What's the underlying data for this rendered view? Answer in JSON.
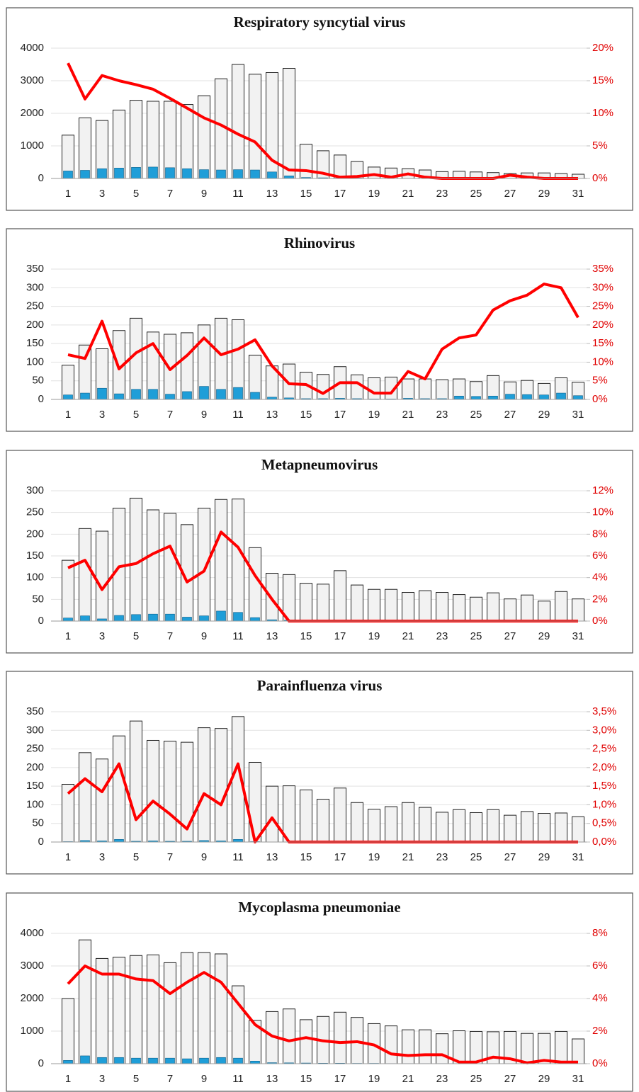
{
  "chart_data": [
    {
      "type": "bar",
      "title": "Respiratory syncytial virus",
      "categories": [
        "1",
        null,
        "3",
        null,
        "5",
        null,
        "7",
        null,
        "9",
        null,
        "11",
        null,
        "13",
        null,
        "15",
        null,
        "17",
        null,
        "19",
        null,
        "21",
        null,
        "23",
        null,
        "25",
        null,
        "27",
        null,
        "29",
        null,
        "31"
      ],
      "series": [
        {
          "color": "#f2f2f2",
          "values": [
            1330,
            1860,
            1780,
            2100,
            2400,
            2370,
            2370,
            2270,
            2540,
            3060,
            3500,
            3200,
            3250,
            3380,
            1050,
            850,
            720,
            520,
            350,
            320,
            300,
            260,
            210,
            220,
            200,
            180,
            150,
            170,
            170,
            150,
            130
          ]
        },
        {
          "color": "#1f9ed8",
          "values": [
            230,
            250,
            300,
            320,
            340,
            350,
            330,
            300,
            270,
            260,
            270,
            260,
            200,
            80,
            30,
            20,
            10,
            10,
            5,
            5,
            3,
            2,
            2,
            2,
            1,
            1,
            1,
            1,
            1,
            1,
            1
          ]
        },
        {
          "type": "line",
          "axis": "y2",
          "color": "#ff0000",
          "values": [
            17.7,
            12.2,
            15.8,
            15,
            14.4,
            13.7,
            12.3,
            10.8,
            9.3,
            8.2,
            6.8,
            5.6,
            2.8,
            1.3,
            1.2,
            0.8,
            0.2,
            0.3,
            0.6,
            0.2,
            0.7,
            0.2,
            0,
            0,
            0,
            0,
            0.5,
            0.2,
            0,
            0,
            0
          ]
        }
      ],
      "ylim": [
        0,
        4000
      ],
      "yticks": [
        0,
        1000,
        2000,
        3000,
        4000
      ],
      "y2lim": [
        0,
        20
      ],
      "y2ticks": [
        {
          "value": 0,
          "label": "0%"
        },
        {
          "value": 5,
          "label": "5%"
        },
        {
          "value": 10,
          "label": "10%"
        },
        {
          "value": 15,
          "label": "15%"
        },
        {
          "value": 20,
          "label": "20%"
        }
      ],
      "grid": true
    },
    {
      "type": "bar",
      "title": "Rhinovirus",
      "categories": [
        "1",
        null,
        "3",
        null,
        "5",
        null,
        "7",
        null,
        "9",
        null,
        "11",
        null,
        "13",
        null,
        "15",
        null,
        "17",
        null,
        "19",
        null,
        "21",
        null,
        "23",
        null,
        "25",
        null,
        "27",
        null,
        "29",
        null,
        "31"
      ],
      "series": [
        {
          "color": "#f2f2f2",
          "values": [
            92,
            146,
            136,
            185,
            218,
            181,
            175,
            179,
            200,
            218,
            214,
            119,
            90,
            95,
            73,
            67,
            88,
            66,
            58,
            60,
            55,
            55,
            53,
            55,
            48,
            64,
            47,
            51,
            43,
            58,
            46
          ]
        },
        {
          "color": "#1f9ed8",
          "values": [
            12,
            17,
            30,
            15,
            27,
            27,
            14,
            21,
            35,
            27,
            32,
            19,
            6,
            4,
            2,
            2,
            3,
            2,
            1,
            1,
            3,
            2,
            2,
            9,
            8,
            9,
            14,
            13,
            12,
            17,
            10
          ]
        },
        {
          "type": "line",
          "axis": "y2",
          "color": "#ff0000",
          "values": [
            12,
            11,
            21,
            8.2,
            12.5,
            15,
            8,
            11.8,
            16.5,
            12,
            13.5,
            16,
            9,
            4.2,
            4,
            1.6,
            4.5,
            4.5,
            1.7,
            1.7,
            7.5,
            5.5,
            13.5,
            16.5,
            17.3,
            24,
            26.5,
            28,
            31,
            30,
            22
          ]
        }
      ],
      "ylim": [
        0,
        350
      ],
      "yticks": [
        0,
        50,
        100,
        150,
        200,
        250,
        300,
        350
      ],
      "y2lim": [
        0,
        35
      ],
      "y2ticks": [
        {
          "value": 0,
          "label": "0%"
        },
        {
          "value": 5,
          "label": "5%"
        },
        {
          "value": 10,
          "label": "10%"
        },
        {
          "value": 15,
          "label": "15%"
        },
        {
          "value": 20,
          "label": "20%"
        },
        {
          "value": 25,
          "label": "25%"
        },
        {
          "value": 30,
          "label": "30%"
        },
        {
          "value": 35,
          "label": "35%"
        }
      ],
      "grid": true
    },
    {
      "type": "bar",
      "title": "Metapneumovirus",
      "categories": [
        "1",
        null,
        "3",
        null,
        "5",
        null,
        "7",
        null,
        "9",
        null,
        "11",
        null,
        "13",
        null,
        "15",
        null,
        "17",
        null,
        "19",
        null,
        "21",
        null,
        "23",
        null,
        "25",
        null,
        "27",
        null,
        "29",
        null,
        "31"
      ],
      "series": [
        {
          "color": "#f2f2f2",
          "values": [
            140,
            213,
            207,
            260,
            283,
            256,
            248,
            222,
            260,
            280,
            281,
            169,
            110,
            107,
            87,
            85,
            116,
            83,
            73,
            73,
            66,
            70,
            66,
            61,
            55,
            65,
            51,
            60,
            46,
            68,
            51
          ]
        },
        {
          "color": "#1f9ed8",
          "values": [
            7,
            12,
            5,
            13,
            15,
            16,
            16,
            9,
            12,
            23,
            20,
            8,
            3,
            2,
            0,
            0,
            0,
            0,
            0,
            0,
            0,
            0,
            0,
            0,
            0,
            0,
            0,
            0,
            0,
            0,
            0
          ]
        },
        {
          "type": "line",
          "axis": "y2",
          "color": "#ff0000",
          "values": [
            4.9,
            5.6,
            2.9,
            5,
            5.3,
            6.2,
            6.9,
            3.6,
            4.6,
            8.2,
            6.8,
            4.2,
            2,
            0,
            0,
            0,
            0,
            0,
            0,
            0,
            0,
            0,
            0,
            0,
            0,
            0,
            0,
            0,
            0,
            0,
            0
          ]
        }
      ],
      "ylim": [
        0,
        300
      ],
      "yticks": [
        0,
        50,
        100,
        150,
        200,
        250,
        300
      ],
      "y2lim": [
        0,
        12
      ],
      "y2ticks": [
        {
          "value": 0,
          "label": "0%"
        },
        {
          "value": 2,
          "label": "2%"
        },
        {
          "value": 4,
          "label": "4%"
        },
        {
          "value": 6,
          "label": "6%"
        },
        {
          "value": 8,
          "label": "8%"
        },
        {
          "value": 10,
          "label": "10%"
        },
        {
          "value": 12,
          "label": "12%"
        }
      ],
      "grid": true
    },
    {
      "type": "bar",
      "title": "Parainfluenza virus",
      "categories": [
        "1",
        null,
        "3",
        null,
        "5",
        null,
        "7",
        null,
        "9",
        null,
        "11",
        null,
        "13",
        null,
        "15",
        null,
        "17",
        null,
        "19",
        null,
        "21",
        null,
        "23",
        null,
        "25",
        null,
        "27",
        null,
        "29",
        null,
        "31"
      ],
      "series": [
        {
          "color": "#f2f2f2",
          "values": [
            155,
            240,
            223,
            285,
            325,
            273,
            271,
            268,
            307,
            305,
            337,
            214,
            150,
            151,
            140,
            115,
            145,
            106,
            88,
            95,
            106,
            93,
            80,
            87,
            79,
            87,
            72,
            82,
            77,
            78,
            68
          ]
        },
        {
          "color": "#1f9ed8",
          "values": [
            1,
            4,
            3,
            7,
            2,
            3,
            2,
            2,
            4,
            3,
            7,
            1,
            0,
            0,
            0,
            0,
            0,
            0,
            0,
            0,
            0,
            0,
            0,
            0,
            0,
            0,
            0,
            0,
            0,
            0,
            0
          ]
        },
        {
          "type": "line",
          "axis": "y2",
          "color": "#ff0000",
          "values": [
            1.3,
            1.7,
            1.35,
            2.1,
            0.6,
            1.1,
            0.75,
            0.35,
            1.3,
            1,
            2.1,
            0,
            0.65,
            0,
            0,
            0,
            0,
            0,
            0,
            0,
            0,
            0,
            0,
            0,
            0,
            0,
            0,
            0,
            0,
            0,
            0
          ]
        }
      ],
      "ylim": [
        0,
        350
      ],
      "yticks": [
        0,
        50,
        100,
        150,
        200,
        250,
        300,
        350
      ],
      "y2lim": [
        0,
        3.5
      ],
      "y2ticks": [
        {
          "value": 0,
          "label": "0,0%"
        },
        {
          "value": 0.5,
          "label": "0,5%"
        },
        {
          "value": 1,
          "label": "1,0%"
        },
        {
          "value": 1.5,
          "label": "1,5%"
        },
        {
          "value": 2,
          "label": "2,0%"
        },
        {
          "value": 2.5,
          "label": "2,5%"
        },
        {
          "value": 3,
          "label": "3,0%"
        },
        {
          "value": 3.5,
          "label": "3,5%"
        }
      ],
      "grid": true
    },
    {
      "type": "bar",
      "title": "Mycoplasma pneumoniae",
      "categories": [
        "1",
        null,
        "3",
        null,
        "5",
        null,
        "7",
        null,
        "9",
        null,
        "11",
        null,
        "13",
        null,
        "15",
        null,
        "17",
        null,
        "19",
        null,
        "21",
        null,
        "23",
        null,
        "25",
        null,
        "27",
        null,
        "29",
        null,
        "31"
      ],
      "series": [
        {
          "color": "#f2f2f2",
          "values": [
            2000,
            3800,
            3230,
            3270,
            3320,
            3340,
            3100,
            3410,
            3410,
            3370,
            2390,
            1330,
            1600,
            1680,
            1350,
            1450,
            1580,
            1420,
            1230,
            1160,
            1040,
            1040,
            920,
            1010,
            990,
            980,
            990,
            930,
            930,
            990,
            760
          ]
        },
        {
          "color": "#1f9ed8",
          "values": [
            100,
            240,
            190,
            190,
            170,
            170,
            170,
            150,
            170,
            190,
            170,
            80,
            30,
            25,
            20,
            15,
            15,
            10,
            10,
            5,
            5,
            5,
            5,
            3,
            3,
            3,
            3,
            2,
            2,
            2,
            2
          ]
        },
        {
          "type": "line",
          "axis": "y2",
          "color": "#ff0000",
          "values": [
            4.9,
            6,
            5.5,
            5.5,
            5.2,
            5.1,
            4.3,
            5,
            5.6,
            5,
            3.7,
            2.4,
            1.7,
            1.4,
            1.6,
            1.4,
            1.3,
            1.35,
            1.15,
            0.6,
            0.5,
            0.55,
            0.55,
            0.1,
            0.1,
            0.4,
            0.3,
            0.05,
            0.2,
            0.1,
            0.1
          ]
        }
      ],
      "ylim": [
        0,
        4000
      ],
      "yticks": [
        0,
        1000,
        2000,
        3000,
        4000
      ],
      "y2lim": [
        0,
        8
      ],
      "y2ticks": [
        {
          "value": 0,
          "label": "0%"
        },
        {
          "value": 2,
          "label": "2%"
        },
        {
          "value": 4,
          "label": "4%"
        },
        {
          "value": 6,
          "label": "6%"
        },
        {
          "value": 8,
          "label": "8%"
        }
      ],
      "grid": true
    }
  ]
}
